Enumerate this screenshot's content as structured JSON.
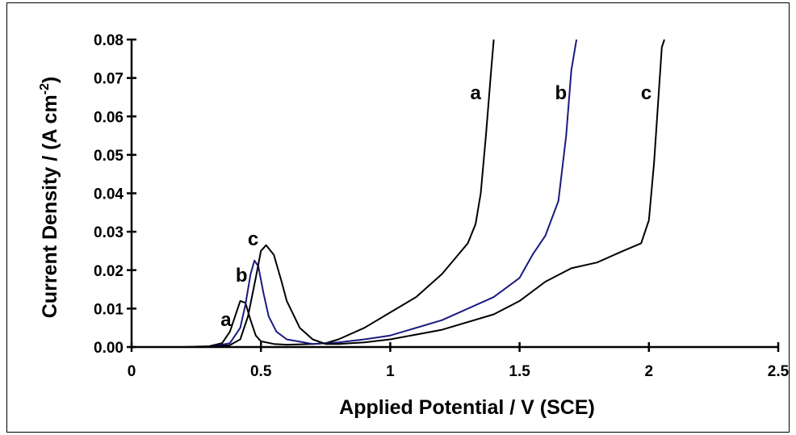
{
  "chart_data": {
    "type": "line",
    "xlabel": "Applied Potential / V (SCE)",
    "ylabel_main": "Current Density / (A cm",
    "ylabel_sup": "-2",
    "ylabel_tail": ")",
    "xlim": [
      0,
      2.5
    ],
    "ylim": [
      0,
      0.08
    ],
    "x_ticks": [
      0,
      0.5,
      1,
      1.5,
      2,
      2.5
    ],
    "x_tick_labels": [
      "0",
      "0.5",
      "1",
      "1.5",
      "2",
      "2.5"
    ],
    "y_ticks": [
      0,
      0.01,
      0.02,
      0.03,
      0.04,
      0.05,
      0.06,
      0.07,
      0.08
    ],
    "y_tick_labels": [
      "0.00",
      "0.01",
      "0.02",
      "0.03",
      "0.04",
      "0.05",
      "0.06",
      "0.07",
      "0.08"
    ],
    "grid": false,
    "series": [
      {
        "name": "a",
        "color": "#000000",
        "x": [
          0,
          0.2,
          0.3,
          0.35,
          0.38,
          0.4,
          0.42,
          0.44,
          0.46,
          0.48,
          0.5,
          0.55,
          0.6,
          0.7,
          0.75,
          0.8,
          0.9,
          1.0,
          1.05,
          1.1,
          1.2,
          1.25,
          1.3,
          1.33,
          1.35,
          1.37,
          1.39,
          1.4
        ],
        "values": [
          0,
          0,
          0.0002,
          0.001,
          0.004,
          0.008,
          0.012,
          0.0115,
          0.007,
          0.003,
          0.0015,
          0.0008,
          0.0006,
          0.0008,
          0.001,
          0.002,
          0.005,
          0.009,
          0.011,
          0.013,
          0.019,
          0.023,
          0.027,
          0.032,
          0.04,
          0.055,
          0.072,
          0.08
        ]
      },
      {
        "name": "b",
        "color": "#1a1a80",
        "x": [
          0,
          0.3,
          0.38,
          0.42,
          0.44,
          0.46,
          0.475,
          0.49,
          0.51,
          0.53,
          0.56,
          0.6,
          0.7,
          0.8,
          0.9,
          1.0,
          1.2,
          1.4,
          1.5,
          1.55,
          1.6,
          1.65,
          1.68,
          1.7,
          1.72
        ],
        "values": [
          0,
          0,
          0.001,
          0.005,
          0.011,
          0.019,
          0.0225,
          0.021,
          0.014,
          0.008,
          0.004,
          0.002,
          0.0008,
          0.0012,
          0.002,
          0.003,
          0.007,
          0.013,
          0.018,
          0.024,
          0.029,
          0.038,
          0.055,
          0.072,
          0.08
        ]
      },
      {
        "name": "c",
        "color": "#000000",
        "x": [
          0,
          0.3,
          0.38,
          0.42,
          0.45,
          0.48,
          0.5,
          0.52,
          0.55,
          0.58,
          0.6,
          0.65,
          0.7,
          0.75,
          0.8,
          0.9,
          1.0,
          1.2,
          1.4,
          1.5,
          1.6,
          1.7,
          1.8,
          1.9,
          1.97,
          2.0,
          2.02,
          2.04,
          2.05,
          2.06
        ],
        "values": [
          0,
          0,
          0.0005,
          0.002,
          0.008,
          0.018,
          0.025,
          0.0265,
          0.024,
          0.017,
          0.012,
          0.005,
          0.002,
          0.0008,
          0.0008,
          0.0012,
          0.002,
          0.0045,
          0.0085,
          0.012,
          0.017,
          0.0205,
          0.022,
          0.025,
          0.027,
          0.033,
          0.048,
          0.068,
          0.078,
          0.08
        ]
      }
    ],
    "annotations": [
      {
        "text": "a",
        "x": 1.33,
        "y": 0.0645
      },
      {
        "text": "b",
        "x": 1.66,
        "y": 0.0645
      },
      {
        "text": "c",
        "x": 1.99,
        "y": 0.0645
      },
      {
        "text": "c",
        "x": 0.47,
        "y": 0.0265
      },
      {
        "text": "b",
        "x": 0.425,
        "y": 0.017
      },
      {
        "text": "a",
        "x": 0.365,
        "y": 0.0055
      }
    ]
  }
}
